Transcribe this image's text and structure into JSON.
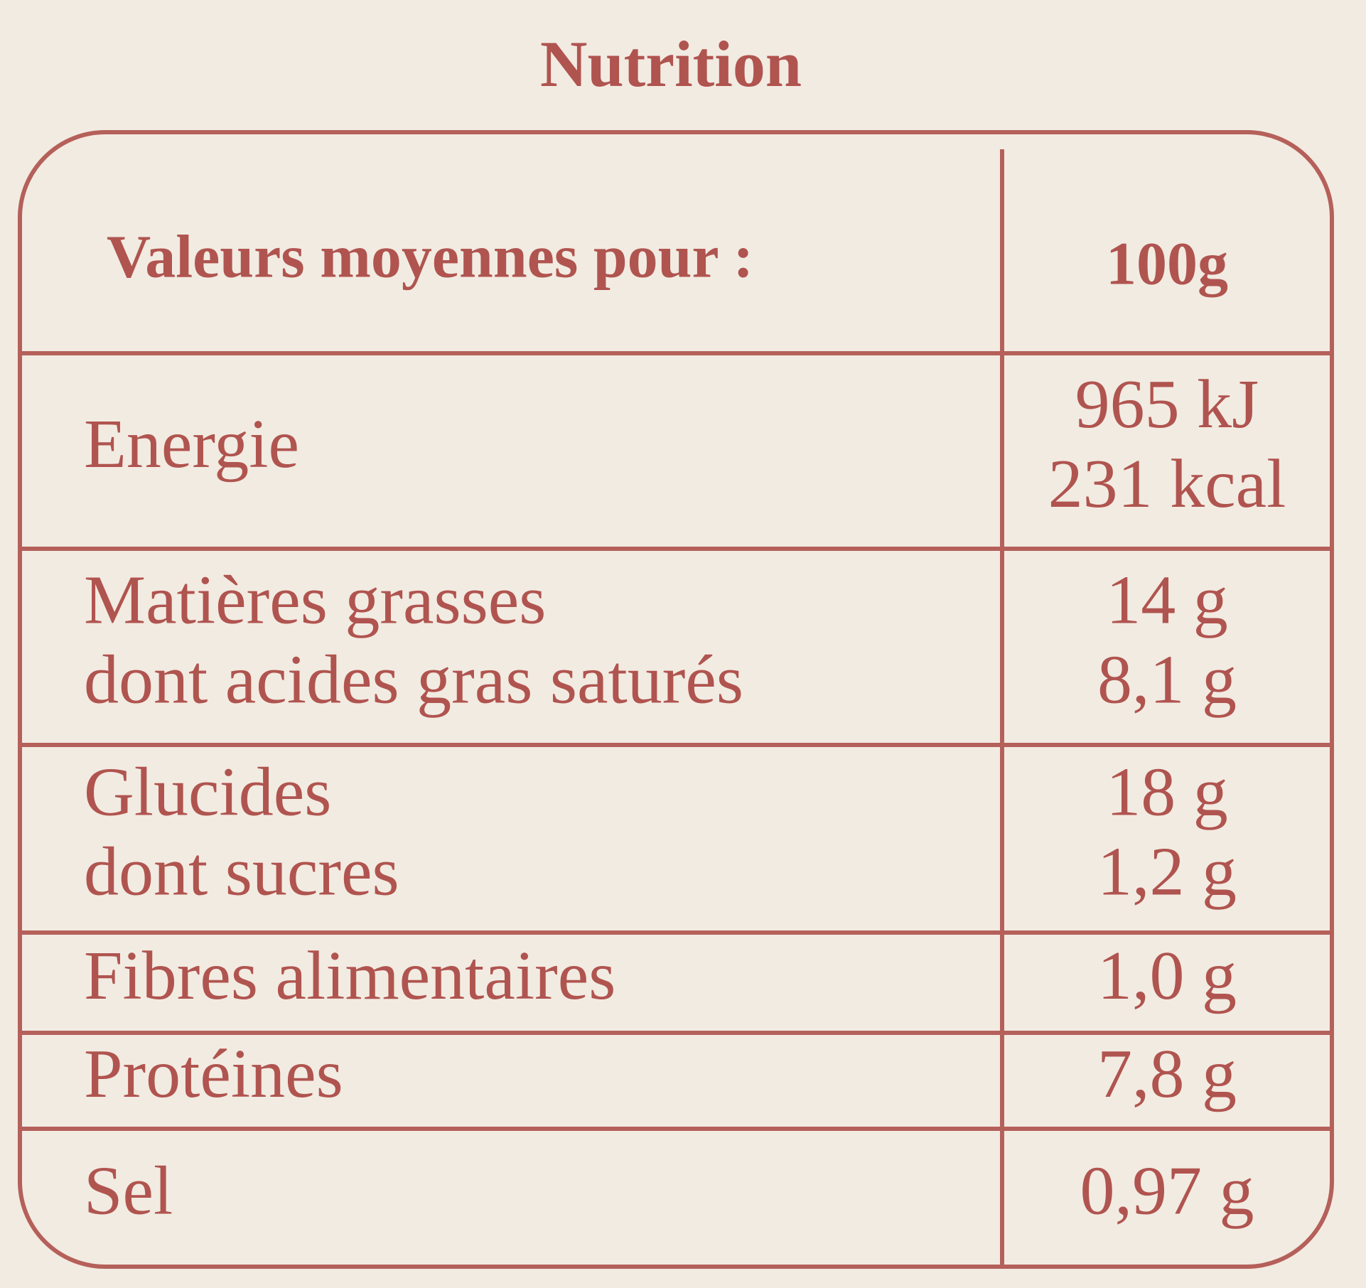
{
  "title": "Nutrition",
  "table": {
    "header": [
      "Valeurs moyennes pour :",
      "100g"
    ],
    "rows": [
      {
        "labels": [
          "Energie"
        ],
        "values": [
          "965 kJ",
          "231 kcal"
        ]
      },
      {
        "labels": [
          "Matières grasses",
          "dont acides gras saturés"
        ],
        "values": [
          "14 g",
          "8,1 g"
        ]
      },
      {
        "labels": [
          "Glucides",
          "dont sucres"
        ],
        "values": [
          "18 g",
          "1,2 g"
        ]
      },
      {
        "labels": [
          "Fibres alimentaires"
        ],
        "values": [
          "1,0 g"
        ]
      },
      {
        "labels": [
          "Protéines"
        ],
        "values": [
          "7,8 g"
        ]
      },
      {
        "labels": [
          "Sel"
        ],
        "values": [
          "0,97 g"
        ]
      }
    ]
  }
}
